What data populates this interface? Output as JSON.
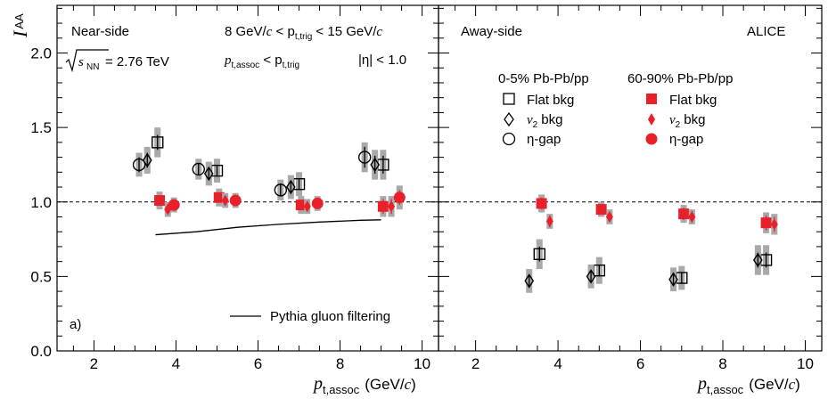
{
  "chart_data": [
    {
      "type": "scatter",
      "panel": "Near-side",
      "panel_label": "a)",
      "ylabel_main": "I",
      "ylabel_sub": "AA",
      "xlabel_main": "p",
      "xlabel_sub": "t,assoc",
      "xlabel_unit_pre": "(GeV/",
      "xlabel_unit_c": "c",
      "xlabel_unit_post": ")",
      "xlim": [
        1.1,
        10.4
      ],
      "ylim": [
        0.0,
        2.32
      ],
      "x_ticks": [
        2,
        4,
        6,
        8,
        10
      ],
      "y_ticks": [
        0.0,
        0.5,
        1.0,
        1.5,
        2.0
      ],
      "y_tick_labels": [
        "0.0",
        "0.5",
        "1.0",
        "1.5",
        "2.0"
      ],
      "reference_line": 1.0,
      "annotations": {
        "energy_prefix": "s",
        "energy_sub": "NN",
        "energy_value": " = 2.76 TeV",
        "trig_left": "8 GeV/",
        "trig_c1": "c",
        "trig_mid": " < p",
        "trig_sub": "t,trig",
        "trig_right": " < 15 GeV/",
        "trig_c2": "c",
        "assoc_p": "p",
        "assoc_sub": "t,assoc",
        "assoc_mid": " < p",
        "assoc_sub2": "t,trig",
        "eta_cut": "|η| < 1.0",
        "pythia_label": "Pythia gluon filtering"
      },
      "pythia": {
        "x": [
          3.5,
          4.5,
          5.5,
          6.5,
          7.5,
          8.5,
          9.0
        ],
        "y": [
          0.78,
          0.8,
          0.83,
          0.85,
          0.865,
          0.877,
          0.88
        ]
      },
      "series": [
        {
          "name": "0-5% Flat bkg",
          "marker": "open-square",
          "color": "#000000",
          "x": [
            3.55,
            5.0,
            7.0,
            9.05
          ],
          "y": [
            1.4,
            1.21,
            1.12,
            1.25
          ],
          "err": [
            0.05,
            0.04,
            0.04,
            0.06
          ],
          "sys": [
            0.1,
            0.08,
            0.08,
            0.1
          ]
        },
        {
          "name": "0-5% v2 bkg",
          "marker": "open-diamond",
          "color": "#000000",
          "x": [
            3.3,
            4.8,
            6.8,
            8.85
          ],
          "y": [
            1.28,
            1.19,
            1.1,
            1.25
          ],
          "err": [
            0.05,
            0.04,
            0.04,
            0.06
          ],
          "sys": [
            0.09,
            0.08,
            0.08,
            0.1
          ]
        },
        {
          "name": "0-5% η-gap",
          "marker": "open-circle",
          "color": "#000000",
          "x": [
            3.1,
            4.55,
            6.55,
            8.6
          ],
          "y": [
            1.25,
            1.22,
            1.08,
            1.3
          ],
          "err": [
            0.05,
            0.04,
            0.04,
            0.07
          ],
          "sys": [
            0.08,
            0.07,
            0.07,
            0.1
          ]
        },
        {
          "name": "60-90% Flat bkg",
          "marker": "filled-square",
          "color": "#e8202a",
          "x": [
            3.6,
            5.05,
            7.05,
            9.05
          ],
          "y": [
            1.01,
            1.03,
            0.98,
            0.97
          ],
          "err": [
            0.03,
            0.03,
            0.03,
            0.05
          ],
          "sys": [
            0.06,
            0.06,
            0.06,
            0.07
          ]
        },
        {
          "name": "60-90% v2 bkg",
          "marker": "filled-diamond",
          "color": "#e8202a",
          "x": [
            3.8,
            5.2,
            7.2,
            9.25
          ],
          "y": [
            0.95,
            1.01,
            0.97,
            0.97
          ],
          "err": [
            0.03,
            0.03,
            0.03,
            0.05
          ],
          "sys": [
            0.05,
            0.05,
            0.05,
            0.07
          ]
        },
        {
          "name": "60-90% η-gap",
          "marker": "filled-circle",
          "color": "#e8202a",
          "x": [
            3.95,
            5.45,
            7.45,
            9.45
          ],
          "y": [
            0.98,
            1.01,
            0.99,
            1.03
          ],
          "err": [
            0.03,
            0.03,
            0.03,
            0.05
          ],
          "sys": [
            0.05,
            0.05,
            0.05,
            0.08
          ]
        }
      ]
    },
    {
      "type": "scatter",
      "panel": "Away-side",
      "experiment": "ALICE",
      "xlabel_main": "p",
      "xlabel_sub": "t,assoc",
      "xlabel_unit_pre": "(GeV/",
      "xlabel_unit_c": "c",
      "xlabel_unit_post": ")",
      "xlim": [
        1.1,
        10.4
      ],
      "ylim": [
        0.0,
        2.32
      ],
      "x_ticks": [
        2,
        4,
        6,
        8,
        10
      ],
      "reference_line": 1.0,
      "legend": {
        "col_left_header": "0-5% Pb-Pb/pp",
        "col_right_header": "60-90% Pb-Pb/pp",
        "items": [
          "Flat bkg",
          "bkg",
          "η-gap"
        ],
        "v2_symbol": "v",
        "v2_sub": "2"
      },
      "series": [
        {
          "name": "0-5% Flat bkg",
          "marker": "open-square",
          "color": "#000000",
          "x": [
            3.55,
            5.0,
            7.0,
            9.05
          ],
          "y": [
            0.65,
            0.54,
            0.49,
            0.61
          ],
          "err": [
            0.05,
            0.04,
            0.04,
            0.05
          ],
          "sys": [
            0.1,
            0.09,
            0.08,
            0.1
          ]
        },
        {
          "name": "0-5% v2 bkg",
          "marker": "open-diamond",
          "color": "#000000",
          "x": [
            3.3,
            4.8,
            6.8,
            8.85
          ],
          "y": [
            0.47,
            0.5,
            0.48,
            0.61
          ],
          "err": [
            0.04,
            0.04,
            0.04,
            0.05
          ],
          "sys": [
            0.08,
            0.08,
            0.08,
            0.1
          ]
        },
        {
          "name": "60-90% Flat bkg",
          "marker": "filled-square",
          "color": "#e8202a",
          "x": [
            3.6,
            5.05,
            7.05,
            9.05
          ],
          "y": [
            0.99,
            0.95,
            0.92,
            0.86
          ],
          "err": [
            0.04,
            0.03,
            0.04,
            0.05
          ],
          "sys": [
            0.06,
            0.05,
            0.06,
            0.07
          ]
        },
        {
          "name": "60-90% v2 bkg",
          "marker": "filled-diamond",
          "color": "#e8202a",
          "x": [
            3.8,
            5.25,
            7.25,
            9.25
          ],
          "y": [
            0.87,
            0.9,
            0.9,
            0.85
          ],
          "err": [
            0.04,
            0.03,
            0.04,
            0.05
          ],
          "sys": [
            0.05,
            0.05,
            0.05,
            0.07
          ]
        }
      ]
    }
  ]
}
